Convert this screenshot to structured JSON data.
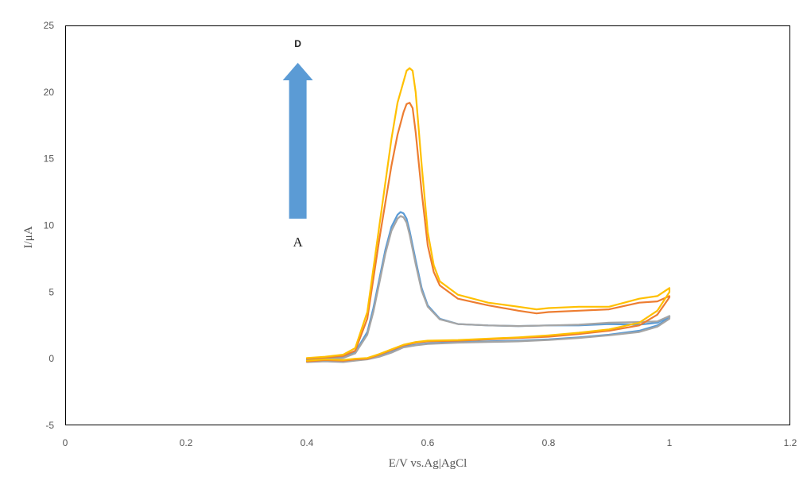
{
  "chart_data": {
    "type": "line",
    "title": "",
    "xlabel": "E/V vs.Ag|AgCl",
    "ylabel": "I/μA",
    "xlim": [
      0,
      1.2
    ],
    "ylim": [
      -5,
      25
    ],
    "xticks": [
      0,
      0.2,
      0.4,
      0.6,
      0.8,
      1,
      1.2
    ],
    "xtick_labels": [
      "0",
      "0.2",
      "0.4",
      "0.6",
      "0.8",
      "1",
      "1.2"
    ],
    "yticks": [
      -5,
      0,
      5,
      10,
      15,
      20,
      25
    ],
    "ytick_labels": [
      "-5",
      "0",
      "5",
      "10",
      "15",
      "20",
      "25"
    ],
    "grid": false,
    "legend": "none",
    "annotations": {
      "top_label": "D",
      "bottom_label": "A",
      "arrow_color": "#5B9BD5",
      "arrow_direction": "up",
      "arrow_x": 0.385,
      "arrow_y_from": 10.5,
      "arrow_y_to": 22.2
    },
    "series": [
      {
        "color": "#5B9BD5",
        "x": [
          0.4,
          0.43,
          0.46,
          0.48,
          0.5,
          0.51,
          0.52,
          0.53,
          0.54,
          0.55,
          0.555,
          0.56,
          0.565,
          0.57,
          0.58,
          0.59,
          0.6,
          0.62,
          0.65,
          0.7,
          0.75,
          0.8,
          0.85,
          0.9,
          0.95,
          0.98,
          1.0,
          1.0,
          0.98,
          0.95,
          0.9,
          0.85,
          0.8,
          0.75,
          0.7,
          0.65,
          0.6,
          0.58,
          0.56,
          0.55,
          0.54,
          0.52,
          0.5,
          0.48,
          0.46,
          0.43,
          0.4
        ],
        "y": [
          -0.1,
          0.0,
          0.1,
          0.5,
          2.0,
          3.8,
          6.0,
          8.2,
          9.9,
          10.8,
          11.0,
          10.9,
          10.5,
          9.6,
          7.4,
          5.3,
          4.0,
          3.0,
          2.6,
          2.5,
          2.45,
          2.5,
          2.5,
          2.6,
          2.55,
          2.7,
          3.2,
          3.1,
          2.5,
          2.1,
          1.8,
          1.6,
          1.45,
          1.35,
          1.3,
          1.25,
          1.15,
          1.05,
          0.9,
          0.7,
          0.5,
          0.2,
          0.0,
          -0.1,
          -0.2,
          -0.15,
          -0.2
        ]
      },
      {
        "color": "#A5A5A5",
        "x": [
          0.4,
          0.43,
          0.46,
          0.48,
          0.5,
          0.51,
          0.52,
          0.53,
          0.54,
          0.55,
          0.555,
          0.56,
          0.565,
          0.57,
          0.58,
          0.59,
          0.6,
          0.62,
          0.65,
          0.7,
          0.75,
          0.8,
          0.85,
          0.9,
          0.95,
          0.98,
          1.0,
          1.0,
          0.98,
          0.95,
          0.9,
          0.85,
          0.8,
          0.75,
          0.7,
          0.65,
          0.6,
          0.58,
          0.56,
          0.55,
          0.54,
          0.52,
          0.5,
          0.48,
          0.46,
          0.43,
          0.4
        ],
        "y": [
          -0.15,
          -0.05,
          0.05,
          0.4,
          1.8,
          3.5,
          5.7,
          7.9,
          9.6,
          10.5,
          10.7,
          10.6,
          10.2,
          9.3,
          7.1,
          5.1,
          3.9,
          2.95,
          2.6,
          2.5,
          2.45,
          2.5,
          2.55,
          2.7,
          2.75,
          2.8,
          3.2,
          3.0,
          2.4,
          2.0,
          1.75,
          1.55,
          1.4,
          1.3,
          1.25,
          1.2,
          1.1,
          1.0,
          0.85,
          0.65,
          0.45,
          0.15,
          -0.05,
          -0.15,
          -0.25,
          -0.2,
          -0.25
        ]
      },
      {
        "color": "#ED7D31",
        "x": [
          0.4,
          0.43,
          0.46,
          0.48,
          0.5,
          0.52,
          0.54,
          0.55,
          0.56,
          0.565,
          0.57,
          0.575,
          0.58,
          0.59,
          0.6,
          0.61,
          0.62,
          0.65,
          0.7,
          0.75,
          0.78,
          0.8,
          0.85,
          0.9,
          0.95,
          0.98,
          1.0,
          1.0,
          0.98,
          0.95,
          0.9,
          0.85,
          0.8,
          0.75,
          0.7,
          0.65,
          0.6,
          0.58,
          0.56,
          0.54,
          0.52,
          0.5,
          0.48,
          0.46,
          0.43,
          0.4
        ],
        "y": [
          0.0,
          0.1,
          0.2,
          0.6,
          3.0,
          9.0,
          14.5,
          16.8,
          18.5,
          19.1,
          19.2,
          18.8,
          17.0,
          12.5,
          8.5,
          6.5,
          5.5,
          4.5,
          4.0,
          3.6,
          3.4,
          3.5,
          3.6,
          3.7,
          4.2,
          4.3,
          4.7,
          4.6,
          3.3,
          2.5,
          2.1,
          1.85,
          1.65,
          1.55,
          1.45,
          1.35,
          1.3,
          1.2,
          1.0,
          0.65,
          0.3,
          0.0,
          -0.05,
          -0.15,
          -0.1,
          -0.2
        ]
      },
      {
        "color": "#FFC000",
        "x": [
          0.4,
          0.43,
          0.46,
          0.48,
          0.5,
          0.52,
          0.54,
          0.55,
          0.56,
          0.565,
          0.57,
          0.575,
          0.58,
          0.59,
          0.6,
          0.61,
          0.62,
          0.65,
          0.7,
          0.75,
          0.78,
          0.8,
          0.85,
          0.9,
          0.95,
          0.98,
          1.0,
          1.0,
          0.98,
          0.95,
          0.9,
          0.85,
          0.8,
          0.75,
          0.7,
          0.65,
          0.6,
          0.58,
          0.56,
          0.54,
          0.52,
          0.5,
          0.48,
          0.46,
          0.43,
          0.4
        ],
        "y": [
          0.05,
          0.15,
          0.3,
          0.8,
          3.5,
          10.0,
          16.5,
          19.2,
          20.8,
          21.6,
          21.8,
          21.6,
          20.0,
          14.5,
          9.5,
          7.0,
          5.8,
          4.8,
          4.2,
          3.9,
          3.7,
          3.8,
          3.9,
          3.9,
          4.5,
          4.7,
          5.3,
          5.0,
          3.6,
          2.7,
          2.2,
          1.95,
          1.75,
          1.6,
          1.5,
          1.4,
          1.35,
          1.25,
          1.05,
          0.7,
          0.35,
          0.05,
          0.0,
          -0.1,
          -0.05,
          -0.15
        ]
      }
    ]
  }
}
